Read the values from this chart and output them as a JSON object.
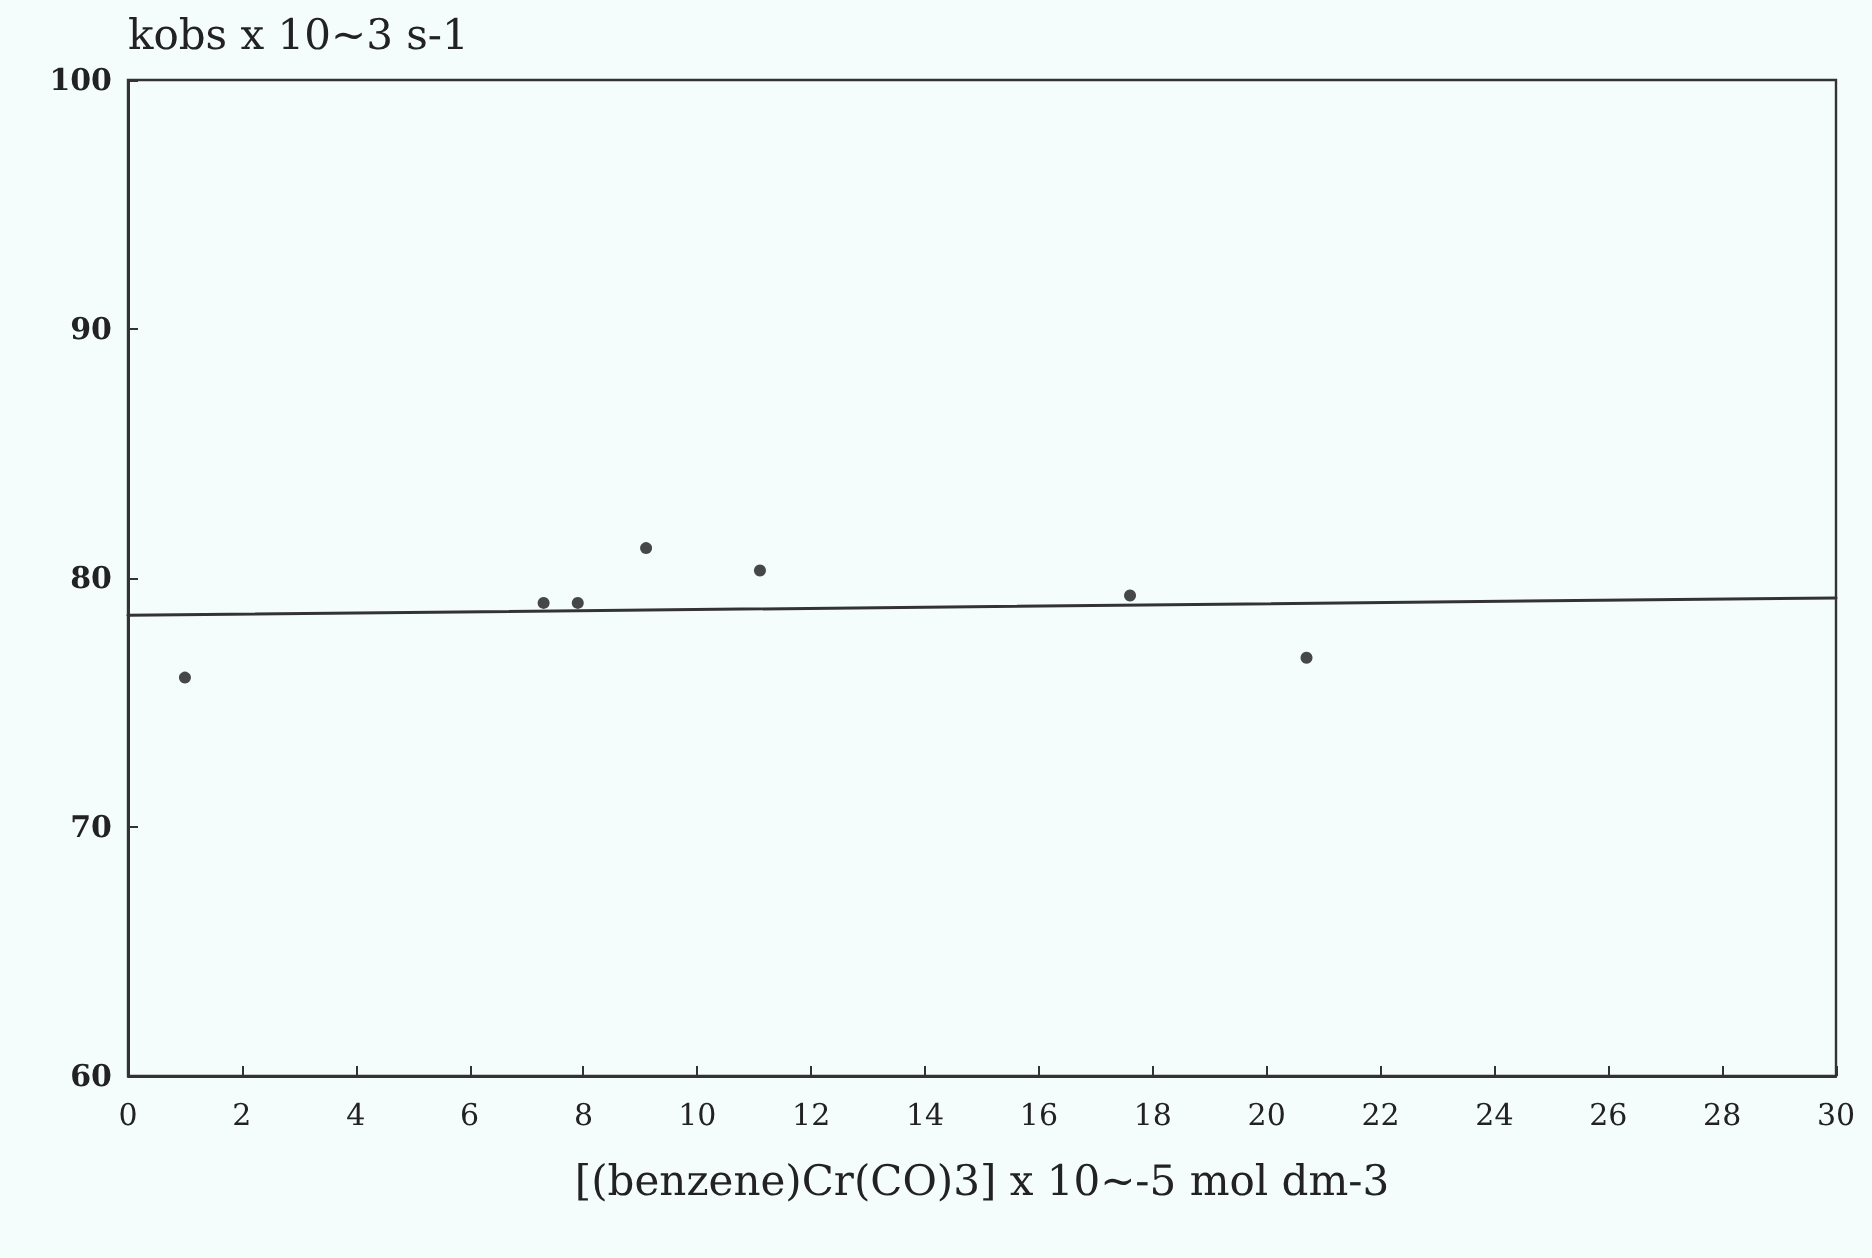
{
  "chart_data": {
    "type": "scatter",
    "ylabel": "kobs x 10~3 s-1",
    "xlabel": "[(benzene)Cr(CO)3] x 10~-5 mol dm-3",
    "series": [
      {
        "color": "#1a1a1a",
        "marker": "circle",
        "x": [
          1.0,
          7.3,
          7.9,
          9.1,
          11.1,
          17.6,
          20.7
        ],
        "values": [
          76.0,
          79.0,
          79.0,
          81.2,
          80.3,
          79.3,
          76.8
        ]
      },
      {
        "type": "line",
        "color": "#333333",
        "marker": "none",
        "x": [
          0,
          30
        ],
        "values": [
          78.5,
          79.2
        ]
      }
    ],
    "xlim": [
      0,
      30
    ],
    "xticks": [
      0,
      2,
      4,
      6,
      8,
      10,
      12,
      14,
      16,
      18,
      20,
      22,
      24,
      26,
      28,
      30
    ],
    "ylim": [
      60,
      100
    ],
    "yticks": [
      60,
      70,
      80,
      90,
      100
    ],
    "grid": false
  }
}
